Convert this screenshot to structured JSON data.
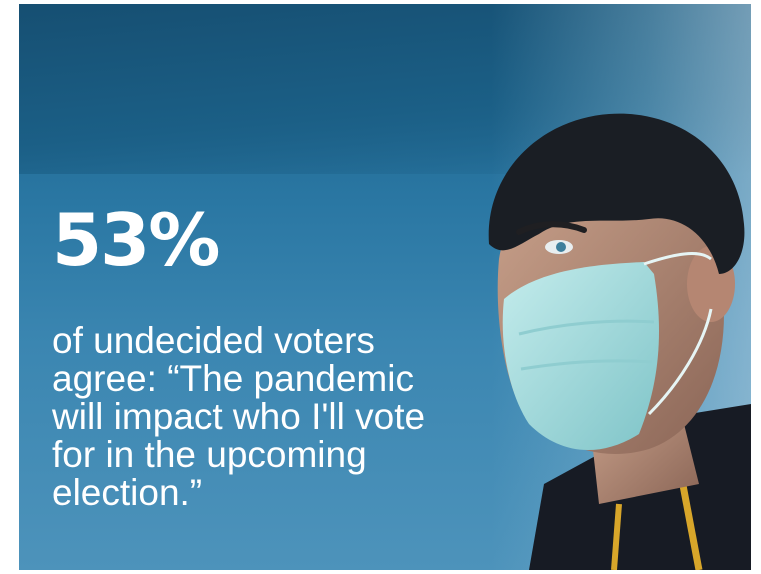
{
  "stat": {
    "value": "53%"
  },
  "quote": {
    "lines": [
      "of undecided voters",
      "agree: “The pandemic",
      "will impact who I'll vote",
      "for in the upcoming",
      "election.”"
    ]
  },
  "colors": {
    "background": "#2a77a3",
    "text": "#ffffff",
    "mask": "#9fd6d8"
  },
  "image": {
    "subject": "man-wearing-surgical-mask"
  }
}
